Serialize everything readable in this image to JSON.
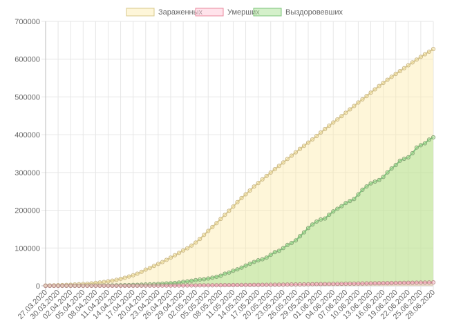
{
  "chart_data": {
    "type": "area",
    "categories": [
      "27.03.2020",
      null,
      null,
      "30.03.2020",
      null,
      null,
      "02.04.2020",
      null,
      null,
      "05.04.2020",
      null,
      null,
      "08.04.2020",
      null,
      null,
      "11.04.2020",
      null,
      null,
      "14.04.2020",
      null,
      null,
      "17.04.2020",
      null,
      null,
      "20.04.2020",
      null,
      null,
      "23.04.2020",
      null,
      null,
      "26.04.2020",
      null,
      null,
      "29.04.2020",
      null,
      null,
      "02.05.2020",
      null,
      null,
      "05.05.2020",
      null,
      null,
      "08.05.2020",
      null,
      null,
      "11.05.2020",
      null,
      null,
      "14.05.2020",
      null,
      null,
      "17.05.2020",
      null,
      null,
      "20.05.2020",
      null,
      null,
      "23.05.2020",
      null,
      null,
      "26.05.2020",
      null,
      null,
      "29.05.2020",
      null,
      null,
      "01.06.2020",
      null,
      null,
      "04.06.2020",
      null,
      null,
      "07.06.2020",
      null,
      null,
      "10.06.2020",
      null,
      null,
      "13.06.2020",
      null,
      null,
      "16.06.2020",
      null,
      null,
      "19.06.2020",
      null,
      null,
      "22.06.2020",
      null,
      null,
      "25.06.2020",
      null,
      null,
      "28.06.2020"
    ],
    "series": [
      {
        "name": "Зараженных",
        "color": "#d8c88a",
        "fill": "rgba(253,236,170,0.45)",
        "point_color": "#cbb98a",
        "values": [
          840,
          1036,
          1264,
          1534,
          1836,
          2337,
          2777,
          3548,
          4149,
          4731,
          5389,
          6343,
          7497,
          8672,
          10131,
          11917,
          13584,
          15770,
          18328,
          21102,
          24490,
          27938,
          32008,
          36793,
          42853,
          47121,
          52763,
          57999,
          62773,
          68622,
          74588,
          80949,
          87147,
          93558,
          99399,
          106498,
          114431,
          124054,
          134687,
          145268,
          155370,
          165929,
          177160,
          187859,
          198676,
          209688,
          221344,
          232243,
          242271,
          252245,
          262843,
          272043,
          281752,
          290678,
          299941,
          308705,
          317554,
          326448,
          335882,
          344481,
          353427,
          362342,
          370680,
          379051,
          387623,
          396575,
          405843,
          414878,
          423741,
          432277,
          440538,
          449256,
          458102,
          467073,
          476043,
          485253,
          493657,
          502436,
          511423,
          520129,
          528964,
          537210,
          545458,
          553301,
          561091,
          568292,
          576162,
          583879,
          591465,
          598878,
          606043,
          613148,
          619936,
          626779
        ]
      },
      {
        "name": "Умерших",
        "color": "#e88a9c",
        "fill": "rgba(255,200,215,0.5)",
        "point_color": "#b88a8a",
        "values": [
          2,
          3,
          4,
          8,
          9,
          17,
          22,
          24,
          30,
          34,
          43,
          45,
          47,
          58,
          63,
          76,
          94,
          106,
          130,
          148,
          170,
          198,
          232,
          273,
          313,
          361,
          405,
          456,
          513,
          555,
          615,
          681,
          747,
          794,
          867,
          972,
          1073,
          1169,
          1222,
          1280,
          1356,
          1451,
          1537,
          1625,
          1723,
          1827,
          1915,
          2009,
          2116,
          2212,
          2305,
          2418,
          2537,
          2631,
          2722,
          2837,
          2972,
          3099,
          3249,
          3388,
          3541,
          3633,
          3807,
          3968,
          4142,
          4374,
          4555,
          4693,
          4855,
          5037,
          5215,
          5384,
          5520,
          5725,
          5859,
          5971,
          6142,
          6358,
          6532,
          6705,
          6829,
          6948,
          7081,
          7284,
          7478,
          7650,
          7843,
          7992,
          8111,
          8359,
          8513,
          8605,
          8781,
          8969
        ]
      },
      {
        "name": "Выздоровевших",
        "color": "#7cc47a",
        "fill": "rgba(170,225,150,0.5)",
        "point_color": "#8aa87a",
        "values": [
          38,
          45,
          49,
          64,
          66,
          121,
          190,
          222,
          235,
          281,
          355,
          406,
          494,
          580,
          698,
          795,
          1045,
          1291,
          1470,
          1694,
          1986,
          2304,
          2590,
          3108,
          3446,
          3873,
          4250,
          4891,
          5568,
          6250,
          6767,
          7346,
          8456,
          10286,
          11619,
          13220,
          14869,
          16639,
          17473,
          19238,
          21327,
          23806,
          26608,
          32000,
          35000,
          39801,
          43512,
          48003,
          53530,
          58226,
          63166,
          67373,
          70209,
          74508,
          82045,
          89244,
          92681,
          100002,
          108023,
          113299,
          120014,
          131129,
          141491,
          153034,
          162301,
          170106,
          175514,
          178012,
          188130,
          196871,
          203850,
          210834,
          219000,
          224553,
          229826,
          241918,
          254255,
          263100,
          271063,
          275870,
          280017,
          288235,
          300213,
          310599,
          319734,
          331110,
          336227,
          340135,
          351024,
          366033,
          372226,
          377400,
          387000,
          393000
        ]
      }
    ],
    "ylim": [
      0,
      700000
    ],
    "yticks": [
      0,
      100000,
      200000,
      300000,
      400000,
      500000,
      600000,
      700000
    ],
    "grid": true,
    "legend": "top"
  }
}
